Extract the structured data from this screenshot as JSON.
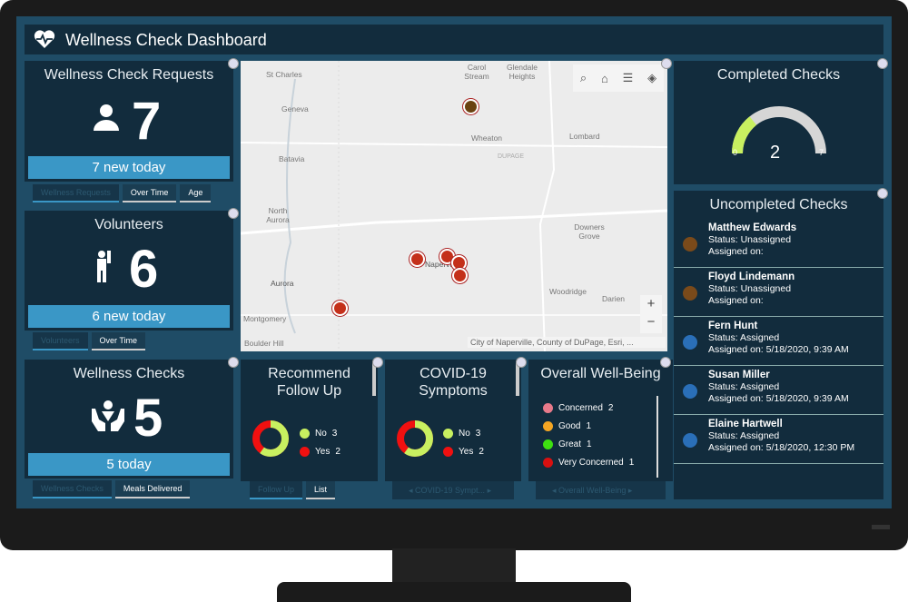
{
  "header": {
    "title": "Wellness Check Dashboard",
    "icon": "heart-pulse-icon"
  },
  "requests": {
    "title": "Wellness Check Requests",
    "value": "7",
    "bar": "7 new today",
    "tabs": [
      "Wellness Requests",
      "Over Time",
      "Age"
    ]
  },
  "volunteers": {
    "title": "Volunteers",
    "value": "6",
    "bar": "6 new today",
    "tabs": [
      "Volunteers",
      "Over Time"
    ]
  },
  "checks": {
    "title": "Wellness Checks",
    "value": "5",
    "bar": "5 today",
    "tabs": [
      "Wellness Checks",
      "Meals Delivered"
    ]
  },
  "map": {
    "labels": [
      "St Charles",
      "Carol Stream",
      "Glendale Heights",
      "Geneva",
      "Wheaton",
      "Lombard",
      "DUPAGE",
      "Batavia",
      "North Aurora",
      "Downers Grove",
      "Naperville",
      "Aurora",
      "Woodridge",
      "Darien",
      "Montgomery",
      "Boulder Hill"
    ],
    "attribution": "City of Naperville, County of DuPage, Esri, ...",
    "zoom_in": "+",
    "zoom_out": "−"
  },
  "follow_up": {
    "title": "Recommend Follow Up",
    "legend": [
      {
        "label": "No",
        "count": "3",
        "color": "#c8f060"
      },
      {
        "label": "Yes",
        "count": "2",
        "color": "#f01010"
      }
    ],
    "tabs": [
      "Follow Up",
      "List"
    ]
  },
  "covid": {
    "title": "COVID-19 Symptoms",
    "legend": [
      {
        "label": "No",
        "count": "3",
        "color": "#c8f060"
      },
      {
        "label": "Yes",
        "count": "2",
        "color": "#f01010"
      }
    ],
    "nav": "COVID-19 Sympt..."
  },
  "wellbeing": {
    "title": "Overall Well-Being",
    "legend": [
      {
        "label": "Concerned",
        "count": "2",
        "color": "#e87a8a"
      },
      {
        "label": "Good",
        "count": "1",
        "color": "#f5a623"
      },
      {
        "label": "Great",
        "count": "1",
        "color": "#3ee010"
      },
      {
        "label": "Very Concerned",
        "count": "1",
        "color": "#d81010"
      }
    ],
    "nav": "Overall Well-Being"
  },
  "completed": {
    "title": "Completed Checks",
    "value": "2",
    "min": "0",
    "max": "7",
    "fraction": 0.2857
  },
  "uncompleted": {
    "title": "Uncompleted Checks",
    "items": [
      {
        "name": "Matthew Edwards",
        "status": "Status: Unassigned",
        "assigned": "Assigned on:",
        "color": "#7a4a1a"
      },
      {
        "name": "Floyd Lindemann",
        "status": "Status: Unassigned",
        "assigned": "Assigned on:",
        "color": "#7a4a1a"
      },
      {
        "name": "Fern Hunt",
        "status": "Status: Assigned",
        "assigned": "Assigned on: 5/18/2020, 9:39 AM",
        "color": "#2a6fb8"
      },
      {
        "name": "Susan Miller",
        "status": "Status: Assigned",
        "assigned": "Assigned on: 5/18/2020, 9:39 AM",
        "color": "#2a6fb8"
      },
      {
        "name": "Elaine Hartwell",
        "status": "Status: Assigned",
        "assigned": "Assigned on: 5/18/2020, 12:30 PM",
        "color": "#2a6fb8"
      }
    ]
  }
}
